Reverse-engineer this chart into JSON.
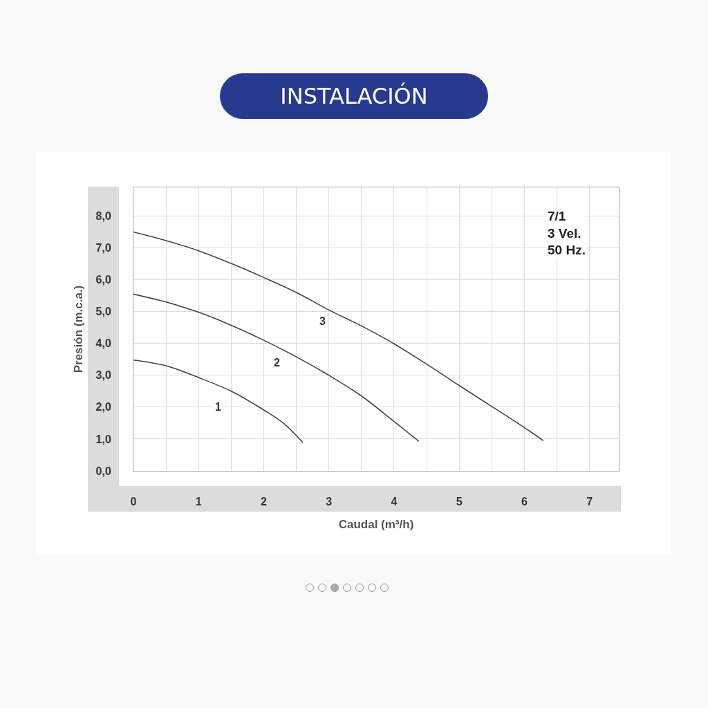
{
  "chart_data": {
    "type": "line",
    "title": "INSTALACIÓN",
    "xlabel": "Caudal (m³/h)",
    "ylabel": "Presión (m.c.a.)",
    "xlim": [
      0,
      7.45
    ],
    "ylim": [
      0,
      8.9
    ],
    "xticks": [
      0,
      {
        "value": 0.5,
        "label": null
      },
      1,
      {
        "value": 1.5,
        "label": null
      },
      2,
      {
        "value": 2.5,
        "label": null
      },
      3,
      {
        "value": 3.5,
        "label": null
      },
      4,
      {
        "value": 4.5,
        "label": null
      },
      5,
      {
        "value": 5.5,
        "label": null
      },
      6,
      {
        "value": 6.5,
        "label": null
      },
      7
    ],
    "yticks": [
      {
        "value": 0,
        "label": "0,0"
      },
      {
        "value": 1,
        "label": "1,0"
      },
      {
        "value": 2,
        "label": "2,0"
      },
      {
        "value": 3,
        "label": "3,0"
      },
      {
        "value": 4,
        "label": "4,0"
      },
      {
        "value": 5,
        "label": "5,0"
      },
      {
        "value": 6,
        "label": "6,0"
      },
      {
        "value": 7,
        "label": "7,0"
      },
      {
        "value": 8,
        "label": "8,0"
      }
    ],
    "grid": true,
    "marker": "none",
    "line_style": "solid",
    "series": [
      {
        "color": "#444444",
        "x": [
          0,
          0.5,
          1,
          1.5,
          2,
          2.3,
          2.6
        ],
        "values": [
          3.48,
          3.3,
          2.93,
          2.5,
          1.91,
          1.5,
          0.89
        ]
      },
      {
        "color": "#444444",
        "x": [
          0,
          0.5,
          1,
          1.5,
          2,
          2.5,
          3,
          3.5,
          4,
          4.38
        ],
        "values": [
          5.55,
          5.3,
          4.98,
          4.57,
          4.1,
          3.58,
          3.0,
          2.35,
          1.55,
          0.93
        ]
      },
      {
        "color": "#444444",
        "x": [
          0,
          0.5,
          1,
          1.5,
          2,
          2.5,
          3,
          3.5,
          4,
          4.5,
          5,
          5.5,
          6,
          6.29
        ],
        "values": [
          7.5,
          7.23,
          6.91,
          6.51,
          6.07,
          5.6,
          5.05,
          4.55,
          3.99,
          3.35,
          2.68,
          2.02,
          1.36,
          0.95
        ]
      }
    ],
    "annotations": [
      {
        "text": "1",
        "x": 1.3,
        "y": 2.0
      },
      {
        "text": "2",
        "x": 2.2,
        "y": 3.4
      },
      {
        "text": "3",
        "x": 2.9,
        "y": 4.7
      },
      "7/1\n3 Vel.\n50 Hz."
    ]
  }
}
